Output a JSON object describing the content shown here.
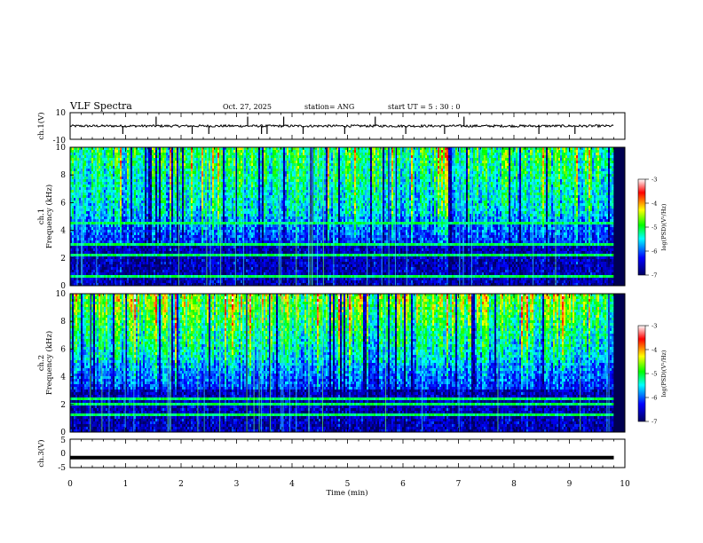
{
  "header": {
    "title": "VLF Spectra",
    "date": "Oct. 27, 2025",
    "station": "station= ANG",
    "start": "start  UT =   5  : 30 : 0"
  },
  "colors": {
    "spectrogram_scale": [
      "#000060",
      "#0000ff",
      "#00ffff",
      "#00ff00",
      "#ffff00",
      "#ff0000",
      "#ffffff"
    ]
  },
  "chart_data": [
    {
      "type": "line",
      "panel": "ch1-waveform",
      "ylabel": "ch.1(V)",
      "ylim": [
        -10,
        10
      ],
      "yticks": [
        "10",
        "-10"
      ],
      "baseline": 0,
      "x_range": [
        0,
        9.8
      ],
      "spikes_x": [
        0.95,
        1.55,
        2.2,
        2.5,
        3.2,
        3.45,
        3.55,
        3.85,
        4.2,
        4.95,
        5.5,
        6.05,
        6.75,
        7.1,
        8.45,
        9.1
      ]
    },
    {
      "type": "heatmap",
      "panel": "ch1-spectrogram",
      "ylabel": "ch.1\nFrequency (kHz)",
      "ylim": [
        0,
        10
      ],
      "yticks": [
        "0",
        "2",
        "4",
        "6",
        "8",
        "10"
      ],
      "x_range": [
        0,
        9.8
      ],
      "colorbar": {
        "label": "log(PSD)(V²/Hz)",
        "ticks": [
          "-3",
          "-4",
          "-5",
          "-6",
          "-7"
        ],
        "range": [
          -7,
          -3
        ]
      }
    },
    {
      "type": "heatmap",
      "panel": "ch2-spectrogram",
      "ylabel": "ch.2\nFrequency (kHz)",
      "ylim": [
        0,
        10
      ],
      "yticks": [
        "0",
        "2",
        "4",
        "6",
        "8",
        "10"
      ],
      "x_range": [
        0,
        9.8
      ],
      "colorbar": {
        "label": "log(PSD)(V²/Hz)",
        "ticks": [
          "-3",
          "-4",
          "-5",
          "-6",
          "-7"
        ],
        "range": [
          -7,
          -3
        ]
      }
    },
    {
      "type": "line",
      "panel": "ch3-waveform",
      "ylabel": "ch.3(V)",
      "ylim": [
        -5,
        5
      ],
      "yticks": [
        "5",
        "0",
        "-5"
      ],
      "baseline": -1.5,
      "x_range": [
        0,
        9.8
      ]
    }
  ],
  "xaxis": {
    "label": "Time  (min)",
    "range": [
      0,
      10
    ],
    "ticks": [
      "0",
      "1",
      "2",
      "3",
      "4",
      "5",
      "6",
      "7",
      "8",
      "9",
      "10"
    ]
  }
}
